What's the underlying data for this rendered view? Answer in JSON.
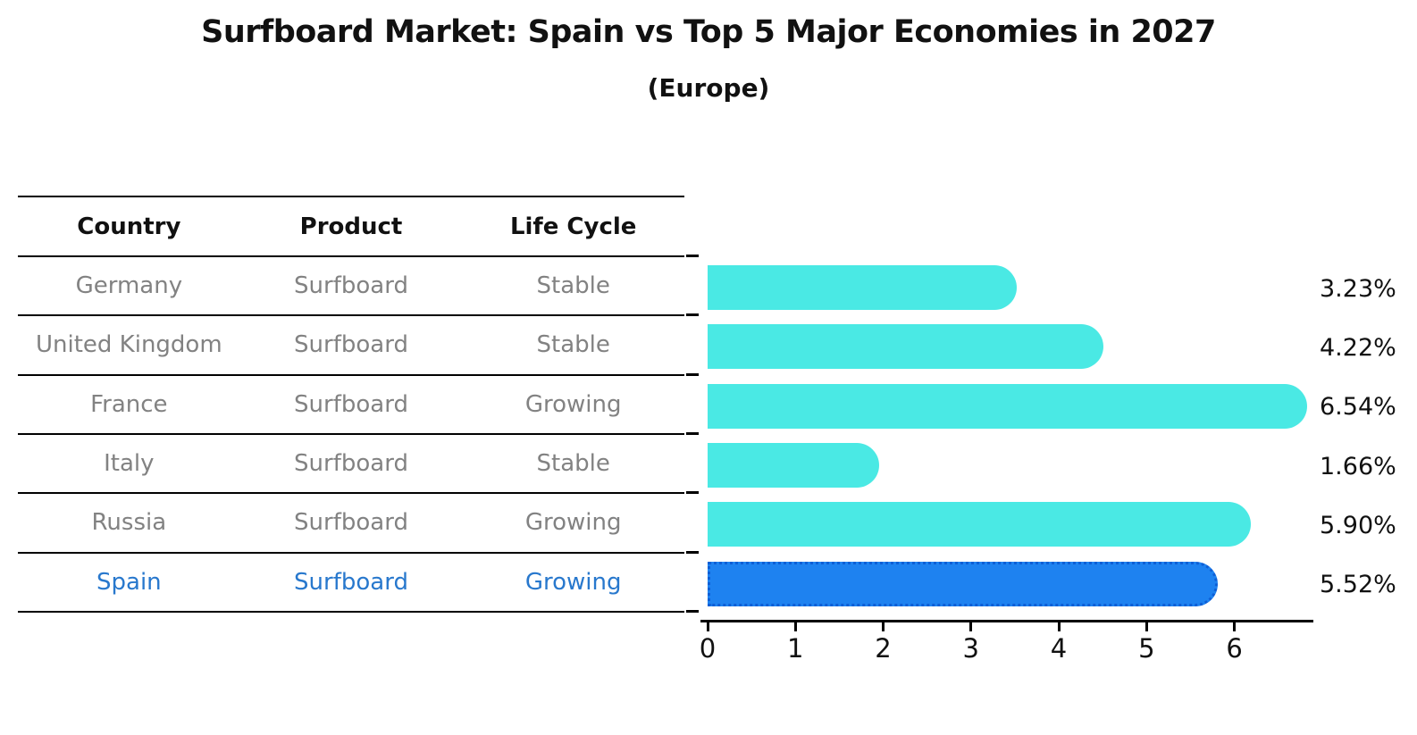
{
  "chart_data": {
    "type": "bar",
    "orientation": "horizontal",
    "title": "Surfboard Market: Spain vs Top 5 Major Economies in 2027",
    "subtitle": "(Europe)",
    "categories": [
      "Germany",
      "United Kingdom",
      "France",
      "Italy",
      "Russia",
      "Spain"
    ],
    "values": [
      3.23,
      4.22,
      6.54,
      1.66,
      5.9,
      5.52
    ],
    "value_labels": [
      "3.23%",
      "4.22%",
      "6.54%",
      "1.66%",
      "5.90%",
      "5.52%"
    ],
    "xlim": [
      0,
      6.9
    ],
    "xticks": [
      0,
      1,
      2,
      3,
      4,
      5,
      6
    ],
    "grid": false,
    "legend": false,
    "highlight_index": 5,
    "highlight_category": "Spain",
    "colors": {
      "bar": "#4AE9E4",
      "highlight_bar": "#1E82F0",
      "highlight_border": "#0E5FD6",
      "highlight_text": "#2878CD",
      "table_text": "#828282",
      "axis_text": "#111111"
    }
  },
  "table": {
    "headers": [
      "Country",
      "Product",
      "Life Cycle"
    ],
    "rows": [
      {
        "country": "Germany",
        "product": "Surfboard",
        "life_cycle": "Stable",
        "highlighted": false
      },
      {
        "country": "United Kingdom",
        "product": "Surfboard",
        "life_cycle": "Stable",
        "highlighted": false
      },
      {
        "country": "France",
        "product": "Surfboard",
        "life_cycle": "Growing",
        "highlighted": false
      },
      {
        "country": "Italy",
        "product": "Surfboard",
        "life_cycle": "Stable",
        "highlighted": false
      },
      {
        "country": "Russia",
        "product": "Surfboard",
        "life_cycle": "Growing",
        "highlighted": false
      },
      {
        "country": "Spain",
        "product": "Surfboard",
        "life_cycle": "Growing",
        "highlighted": true
      }
    ]
  }
}
